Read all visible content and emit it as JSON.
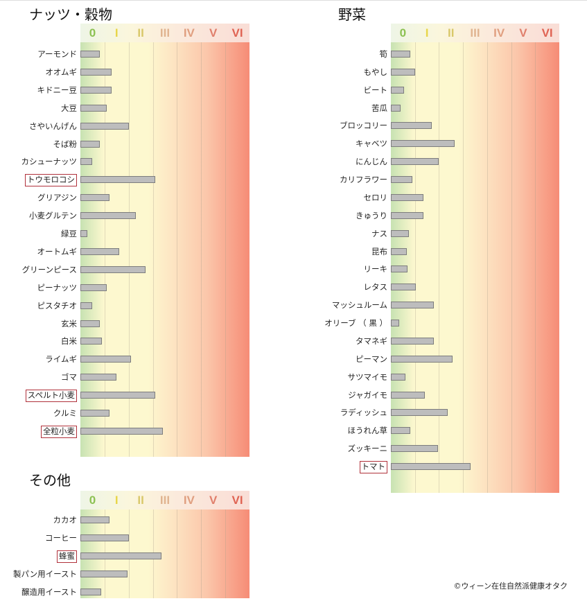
{
  "class_labels": [
    "0",
    "I",
    "II",
    "III",
    "IV",
    "V",
    "VI"
  ],
  "class_label_colors": [
    "#8cc152",
    "#e8d64a",
    "#d9c86a",
    "#e0b490",
    "#e09f80",
    "#e07f6c",
    "#e06454"
  ],
  "bar_color": "#bdbdbd",
  "highlight_color": "#b0303a",
  "credit": "©ウィーン在住自然派健康オタク",
  "chart_data": [
    {
      "type": "bar",
      "orientation": "horizontal",
      "title": "ナッツ・穀物",
      "xlim": [
        0,
        7
      ],
      "x_tick_labels": [
        "0",
        "I",
        "II",
        "III",
        "IV",
        "V",
        "VI"
      ],
      "categories": [
        "アーモンド",
        "オオムギ",
        "キドニー豆",
        "大豆",
        "さやいんげん",
        "そば粉",
        "カシューナッツ",
        "トウモロコシ",
        "グリアジン",
        "小麦グルテン",
        "緑豆",
        "オートムギ",
        "グリーンピース",
        "ピーナッツ",
        "ピスタチオ",
        "玄米",
        "白米",
        "ライムギ",
        "ゴマ",
        "スペルト小麦",
        "クルミ",
        "全粒小麦"
      ],
      "values": [
        0.8,
        1.3,
        1.3,
        1.1,
        2.0,
        0.8,
        0.5,
        3.1,
        1.2,
        2.3,
        0.3,
        1.6,
        2.7,
        1.1,
        0.5,
        0.8,
        0.9,
        2.1,
        1.5,
        3.1,
        1.2,
        3.4
      ],
      "highlighted": [
        "トウモロコシ",
        "スペルト小麦",
        "全粒小麦"
      ]
    },
    {
      "type": "bar",
      "orientation": "horizontal",
      "title": "野菜",
      "xlim": [
        0,
        7
      ],
      "x_tick_labels": [
        "0",
        "I",
        "II",
        "III",
        "IV",
        "V",
        "VI"
      ],
      "categories": [
        "筍",
        "もやし",
        "ビート",
        "苦瓜",
        "ブロッコリー",
        "キャベツ",
        "にんじん",
        "カリフラワー",
        "セロリ",
        "きゅうり",
        "ナス",
        "昆布",
        "リーキ",
        "レタス",
        "マッシュルーム",
        "オリーブ （ 黒 ）",
        "タマネギ",
        "ピーマン",
        "サツマイモ",
        "ジャガイモ",
        "ラディッシュ",
        "ほうれん草",
        "ズッキーニ",
        "トマト"
      ],
      "values": [
        0.8,
        1.0,
        0.55,
        0.4,
        1.7,
        2.65,
        2.0,
        0.9,
        1.35,
        1.35,
        0.75,
        0.65,
        0.7,
        1.05,
        1.8,
        0.35,
        1.8,
        2.55,
        0.6,
        1.4,
        2.35,
        0.8,
        1.95,
        3.3
      ],
      "highlighted": [
        "トマト"
      ]
    },
    {
      "type": "bar",
      "orientation": "horizontal",
      "title": "その他",
      "xlim": [
        0,
        7
      ],
      "x_tick_labels": [
        "0",
        "I",
        "II",
        "III",
        "IV",
        "V",
        "VI"
      ],
      "categories": [
        "カカオ",
        "コーヒー",
        "蜂蜜",
        "製パン用イースト",
        "醸造用イースト"
      ],
      "values": [
        1.2,
        2.0,
        3.35,
        1.95,
        0.85
      ],
      "highlighted": [
        "蜂蜜"
      ]
    }
  ]
}
